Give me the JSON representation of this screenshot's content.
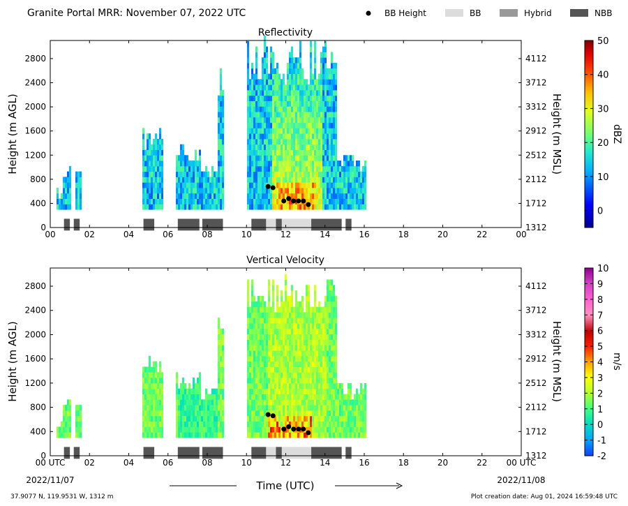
{
  "header": {
    "title": "Granite Portal MRR:  November 07, 2022 UTC",
    "legend": [
      {
        "label": "BB Height",
        "kind": "dot",
        "color": "#000000"
      },
      {
        "label": "BB",
        "kind": "box",
        "color": "#dcdcdc"
      },
      {
        "label": "Hybrid",
        "kind": "box",
        "color": "#999999"
      },
      {
        "label": "NBB",
        "kind": "box",
        "color": "#555555"
      }
    ]
  },
  "footer": {
    "coords": "37.9077 N, 119.9531 W, 1312 m",
    "creation": "Plot creation date: Aug 01, 2024 16:59:48 UTC",
    "date_start": "2022/11/07",
    "date_end": "2022/11/08",
    "xlabel": "Time (UTC)"
  },
  "chart_data": [
    {
      "type": "heatmap",
      "title": "Reflectivity",
      "xlabel": "Time (UTC)",
      "ylabel": "Height (m AGL)",
      "y2label": "Height (m MSL)",
      "xlim": [
        0,
        24
      ],
      "ylim": [
        0,
        3100
      ],
      "xticks": [
        "00",
        "02",
        "04",
        "06",
        "08",
        "10",
        "12",
        "14",
        "16",
        "18",
        "20",
        "22",
        "00"
      ],
      "yticks": [
        0,
        400,
        800,
        1200,
        1600,
        2000,
        2400,
        2800
      ],
      "y2ticks": [
        1312,
        1712,
        2112,
        2512,
        2912,
        3312,
        3712,
        4112
      ],
      "colorbar": {
        "label": "dBZ",
        "range": [
          -5,
          50
        ],
        "ticks": [
          0,
          10,
          20,
          30,
          40,
          50
        ]
      },
      "bb_height": [
        {
          "t": 11.1,
          "h": 680
        },
        {
          "t": 11.35,
          "h": 660
        },
        {
          "t": 11.9,
          "h": 440
        },
        {
          "t": 12.15,
          "h": 480
        },
        {
          "t": 12.4,
          "h": 440
        },
        {
          "t": 12.65,
          "h": 440
        },
        {
          "t": 12.9,
          "h": 440
        },
        {
          "t": 13.15,
          "h": 380
        }
      ],
      "precip_type": [
        {
          "start": 0.7,
          "end": 1.0,
          "type": "NBB"
        },
        {
          "start": 1.2,
          "end": 1.5,
          "type": "NBB"
        },
        {
          "start": 4.75,
          "end": 5.3,
          "type": "NBB"
        },
        {
          "start": 6.5,
          "end": 7.6,
          "type": "NBB"
        },
        {
          "start": 7.75,
          "end": 8.8,
          "type": "NBB"
        },
        {
          "start": 10.25,
          "end": 11.0,
          "type": "NBB"
        },
        {
          "start": 11.0,
          "end": 11.5,
          "type": "BB"
        },
        {
          "start": 11.5,
          "end": 11.8,
          "type": "NBB"
        },
        {
          "start": 11.8,
          "end": 13.3,
          "type": "BB"
        },
        {
          "start": 13.3,
          "end": 14.85,
          "type": "NBB"
        },
        {
          "start": 15.05,
          "end": 15.35,
          "type": "NBB"
        }
      ]
    },
    {
      "type": "heatmap",
      "title": "Vertical Velocity",
      "xlabel": "Time (UTC)",
      "ylabel": "Height (m AGL)",
      "y2label": "Height (m MSL)",
      "xlim": [
        0,
        24
      ],
      "ylim": [
        0,
        3100
      ],
      "xticks": [
        "00 UTC",
        "02",
        "04",
        "06",
        "08",
        "10",
        "12",
        "14",
        "16",
        "18",
        "20",
        "22",
        "00 UTC"
      ],
      "yticks": [
        0,
        400,
        800,
        1200,
        1600,
        2000,
        2400,
        2800
      ],
      "y2ticks": [
        1312,
        1712,
        2112,
        2512,
        2912,
        3312,
        3712,
        4112
      ],
      "colorbar": {
        "label": "m/s",
        "range": [
          -2,
          10
        ],
        "ticks": [
          -2,
          -1,
          0,
          1,
          2,
          3,
          4,
          5,
          6,
          7,
          8,
          9,
          10
        ]
      },
      "bb_height": [
        {
          "t": 11.1,
          "h": 680
        },
        {
          "t": 11.35,
          "h": 660
        },
        {
          "t": 11.9,
          "h": 440
        },
        {
          "t": 12.15,
          "h": 480
        },
        {
          "t": 12.4,
          "h": 440
        },
        {
          "t": 12.65,
          "h": 440
        },
        {
          "t": 12.9,
          "h": 440
        },
        {
          "t": 13.15,
          "h": 380
        }
      ],
      "precip_type": [
        {
          "start": 0.7,
          "end": 1.0,
          "type": "NBB"
        },
        {
          "start": 1.2,
          "end": 1.5,
          "type": "NBB"
        },
        {
          "start": 4.75,
          "end": 5.3,
          "type": "NBB"
        },
        {
          "start": 6.5,
          "end": 7.6,
          "type": "NBB"
        },
        {
          "start": 7.75,
          "end": 8.8,
          "type": "NBB"
        },
        {
          "start": 10.25,
          "end": 11.0,
          "type": "NBB"
        },
        {
          "start": 11.0,
          "end": 11.5,
          "type": "BB"
        },
        {
          "start": 11.5,
          "end": 11.8,
          "type": "NBB"
        },
        {
          "start": 11.8,
          "end": 13.3,
          "type": "BB"
        },
        {
          "start": 13.3,
          "end": 14.85,
          "type": "NBB"
        },
        {
          "start": 15.05,
          "end": 15.35,
          "type": "NBB"
        }
      ]
    }
  ]
}
